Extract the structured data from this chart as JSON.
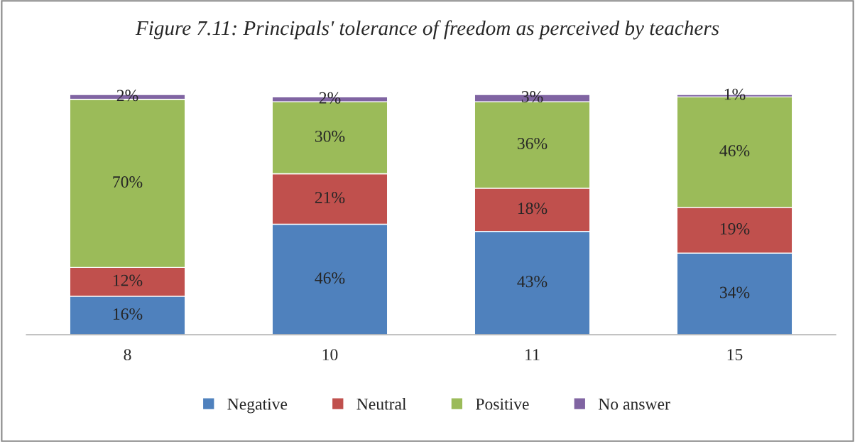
{
  "chart_data": {
    "type": "bar",
    "title": "Figure 7.11: Principals' tolerance of freedom as perceived by teachers",
    "categories": [
      "8",
      "10",
      "11",
      "15"
    ],
    "series": [
      {
        "name": "Negative",
        "color": "#4f81bd",
        "values": [
          16,
          46,
          43,
          34
        ],
        "value_labels": [
          "16%",
          "46%",
          "43%",
          "34%"
        ]
      },
      {
        "name": "Neutral",
        "color": "#c0504d",
        "values": [
          12,
          21,
          18,
          19
        ],
        "value_labels": [
          "12%",
          "21%",
          "18%",
          "19%"
        ]
      },
      {
        "name": "Positive",
        "color": "#9bbb59",
        "values": [
          70,
          30,
          36,
          46
        ],
        "value_labels": [
          "70%",
          "30%",
          "36%",
          "46%"
        ]
      },
      {
        "name": "No answer",
        "color": "#8064a2",
        "values": [
          2,
          2,
          3,
          1
        ],
        "value_labels": [
          "2%",
          "2%",
          "3%",
          "1%"
        ]
      }
    ],
    "stacked": true,
    "tick_labels": "x",
    "grid": false,
    "legend": "bottom"
  }
}
